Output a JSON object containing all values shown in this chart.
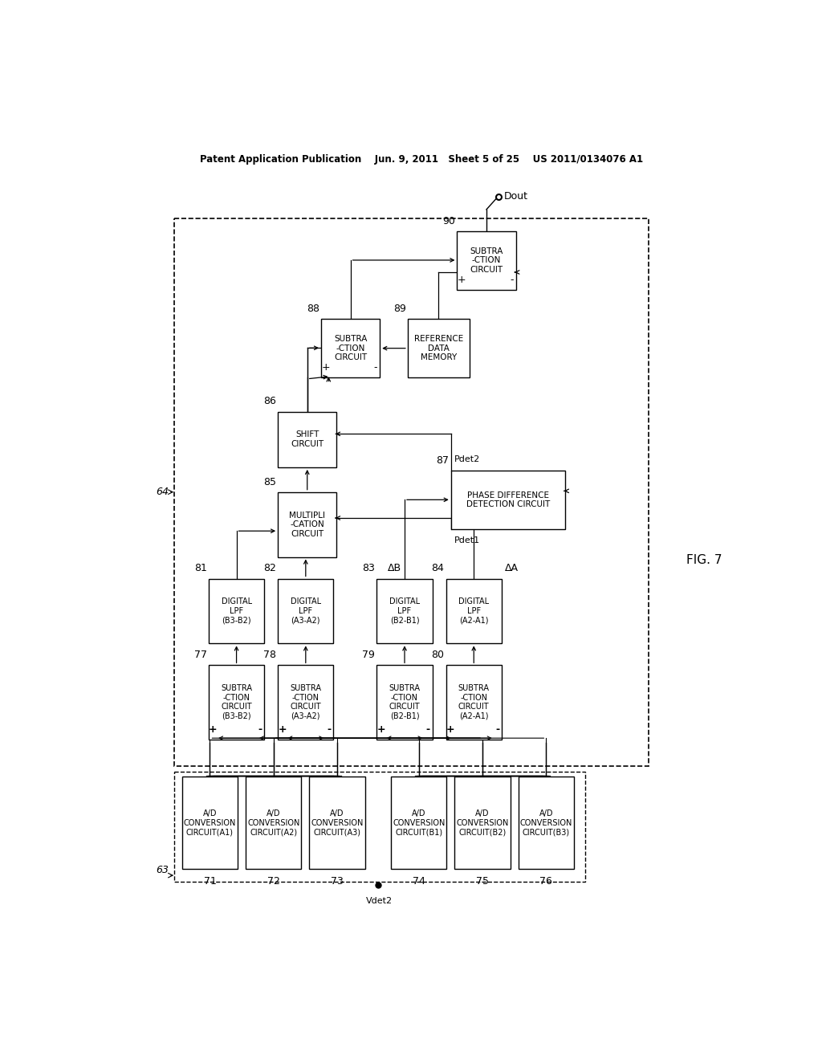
{
  "bg": "#ffffff",
  "header": "Patent Application Publication    Jun. 9, 2011   Sheet 5 of 25    US 2011/0134076 A1",
  "fig_label": "FIG. 7",
  "ad_labels": [
    "A/D\nCONVERSION\nCIRCUIT(A1)",
    "A/D\nCONVERSION\nCIRCUIT(A2)",
    "A/D\nCONVERSION\nCIRCUIT(A3)",
    "A/D\nCONVERSION\nCIRCUIT(B1)",
    "A/D\nCONVERSION\nCIRCUIT(B2)",
    "A/D\nCONVERSION\nCIRCUIT(B3)"
  ],
  "ad_ids": [
    "71",
    "72",
    "73",
    "74",
    "75",
    "76"
  ],
  "sub2_labels": [
    "SUBTRA\n-CTION\nCIRCUIT\n(B3-B2)",
    "SUBTRA\n-CTION\nCIRCUIT\n(A3-A2)",
    "SUBTRA\n-CTION\nCIRCUIT\n(B2-B1)",
    "SUBTRA\n-CTION\nCIRCUIT\n(A2-A1)"
  ],
  "sub2_ids": [
    "77",
    "78",
    "79",
    "80"
  ],
  "lpf_labels": [
    "DIGITAL\nLPF\n(B3-B2)",
    "DIGITAL\nLPF\n(A3-A2)",
    "DIGITAL\nLPF\n(B2-B1)",
    "DIGITAL\nLPF\n(A2-A1)"
  ],
  "lpf_ids": [
    "81",
    "82",
    "83",
    "84"
  ]
}
